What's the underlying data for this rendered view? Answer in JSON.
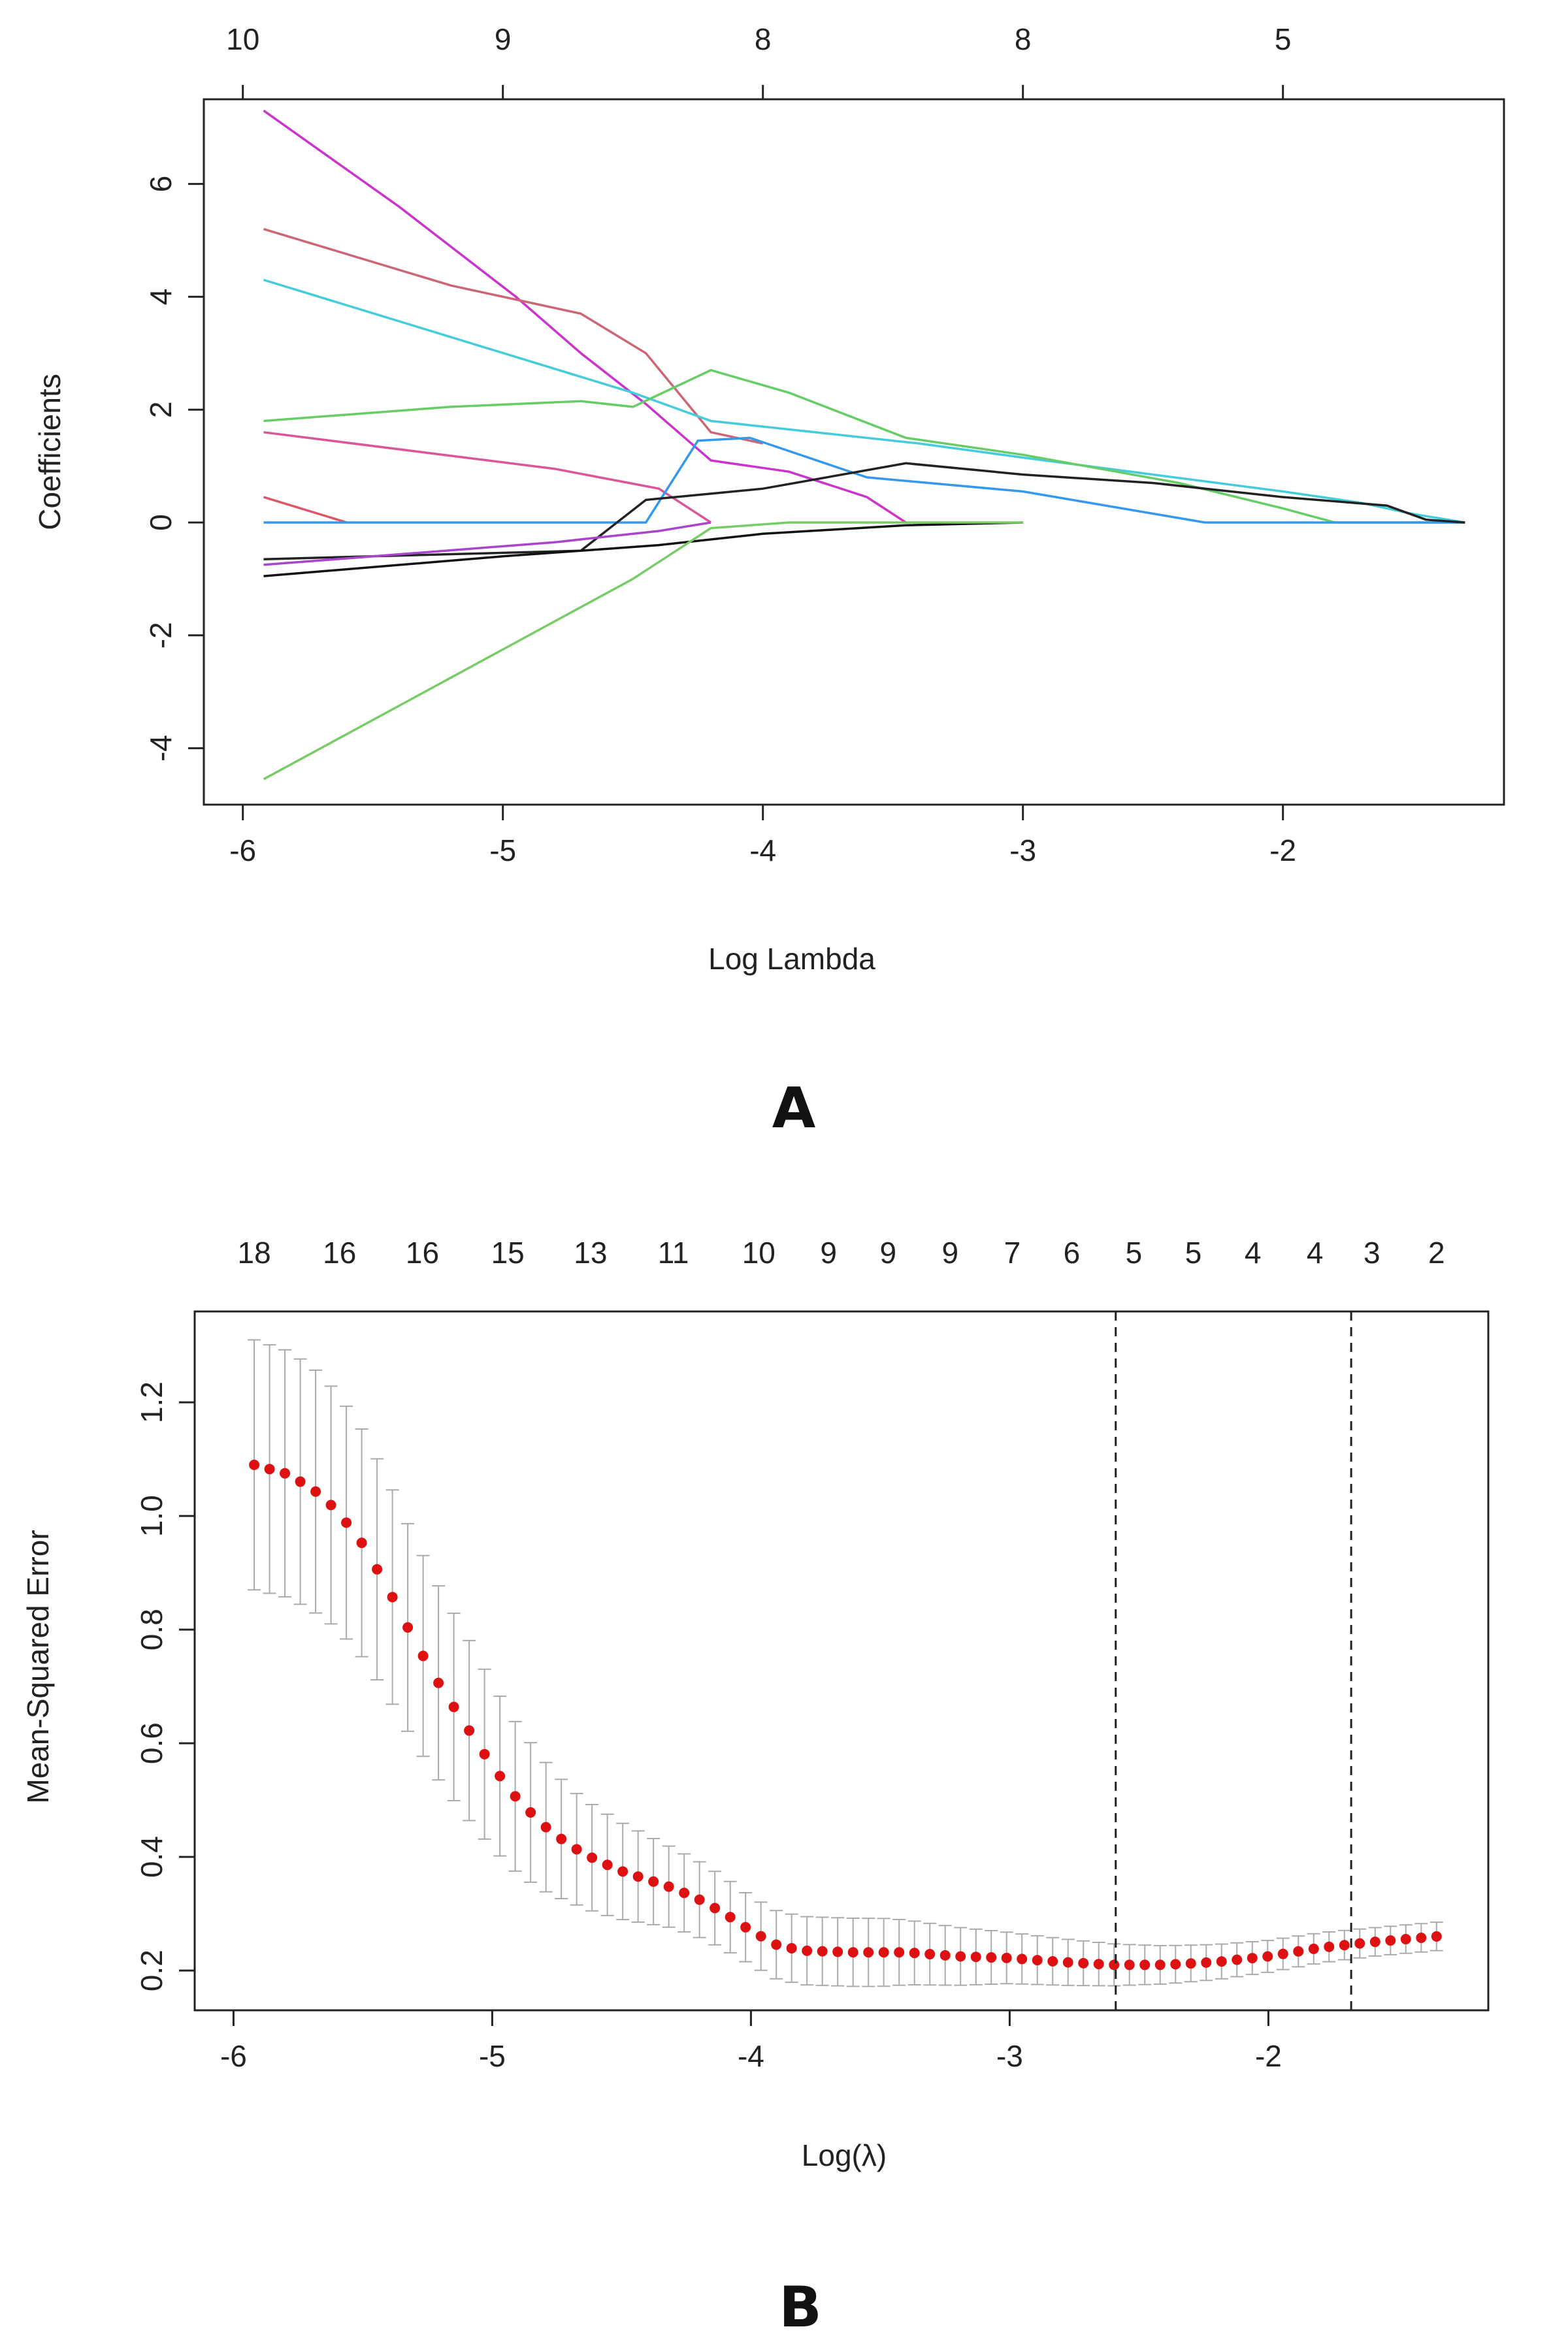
{
  "chart_data": [
    {
      "panel": "A",
      "type": "line",
      "xlabel": "Log Lambda",
      "ylabel": "Coefficients",
      "xlim": [
        -6.15,
        -1.15
      ],
      "ylim": [
        -5.0,
        7.5
      ],
      "xticks": [
        -6,
        -5,
        -4,
        -3,
        -2
      ],
      "xtick_labels": [
        "-6",
        "-5",
        "-4",
        "-3",
        "-2"
      ],
      "yticks": [
        -4,
        -2,
        0,
        2,
        4,
        6
      ],
      "ytick_labels": [
        "-4",
        "-2",
        "0",
        "2",
        "4",
        "6"
      ],
      "top_axis": {
        "positions": [
          -6,
          -5,
          -4,
          -3,
          -2
        ],
        "labels": [
          "10",
          "9",
          "8",
          "8",
          "5"
        ]
      },
      "series": [
        {
          "name": "magenta",
          "color": "#cc33cc",
          "x": [
            -5.92,
            -5.4,
            -4.95,
            -4.7,
            -4.45,
            -4.2,
            -3.9,
            -3.6,
            -3.45
          ],
          "y": [
            7.3,
            5.6,
            4.0,
            3.0,
            2.1,
            1.1,
            0.9,
            0.45,
            0.0
          ]
        },
        {
          "name": "rose",
          "color": "#cc6677",
          "x": [
            -5.92,
            -5.2,
            -4.7,
            -4.45,
            -4.2,
            -4.0
          ],
          "y": [
            5.2,
            4.2,
            3.7,
            3.0,
            1.6,
            1.4
          ]
        },
        {
          "name": "cyan",
          "color": "#44ccdd",
          "x": [
            -5.92,
            -4.5,
            -4.2,
            -3.4,
            -3.0,
            -2.5,
            -2.0,
            -1.7,
            -1.5,
            -1.3
          ],
          "y": [
            4.3,
            2.3,
            1.8,
            1.4,
            1.15,
            0.85,
            0.55,
            0.35,
            0.15,
            0.0
          ]
        },
        {
          "name": "green",
          "color": "#66cc66",
          "x": [
            -5.92,
            -5.2,
            -4.7,
            -4.5,
            -4.2,
            -3.9,
            -3.45,
            -3.0,
            -2.4,
            -2.0,
            -1.8,
            -1.3
          ],
          "y": [
            1.8,
            2.05,
            2.15,
            2.05,
            2.7,
            2.3,
            1.5,
            1.2,
            0.7,
            0.25,
            0.0,
            0.0
          ]
        },
        {
          "name": "pink",
          "color": "#dd5599",
          "x": [
            -5.92,
            -4.8,
            -4.4,
            -4.2
          ],
          "y": [
            1.6,
            0.95,
            0.6,
            0.0
          ]
        },
        {
          "name": "salmon",
          "color": "#dd5566",
          "x": [
            -5.92,
            -5.6
          ],
          "y": [
            0.45,
            0.0
          ]
        },
        {
          "name": "blue",
          "color": "#3399ee",
          "x": [
            -5.92,
            -4.45,
            -4.25,
            -4.05,
            -3.6,
            -3.0,
            -2.3,
            -1.3
          ],
          "y": [
            0.0,
            0.0,
            1.45,
            1.5,
            0.8,
            0.55,
            0.0,
            0.0
          ]
        },
        {
          "name": "black",
          "color": "#222222",
          "x": [
            -5.92,
            -4.7,
            -4.45,
            -4.0,
            -3.45,
            -3.0,
            -2.5,
            -2.0,
            -1.6,
            -1.45,
            -1.3
          ],
          "y": [
            -0.65,
            -0.5,
            0.4,
            0.6,
            1.05,
            0.85,
            0.7,
            0.45,
            0.3,
            0.05,
            0.0
          ]
        },
        {
          "name": "black2",
          "color": "#111111",
          "x": [
            -5.92,
            -5.0,
            -4.4,
            -4.0,
            -3.45,
            -3.0
          ],
          "y": [
            -0.95,
            -0.6,
            -0.4,
            -0.2,
            -0.05,
            0.0
          ]
        },
        {
          "name": "purple",
          "color": "#aa44cc",
          "x": [
            -5.92,
            -4.8,
            -4.4,
            -4.2
          ],
          "y": [
            -0.75,
            -0.35,
            -0.15,
            0.0
          ]
        },
        {
          "name": "green2",
          "color": "#77cc66",
          "x": [
            -5.92,
            -4.7,
            -4.5,
            -4.2,
            -3.9,
            -3.0
          ],
          "y": [
            -4.55,
            -1.5,
            -1.0,
            -0.1,
            0.0,
            0.0
          ]
        }
      ]
    },
    {
      "panel": "B",
      "type": "scatter",
      "xlabel": "Log(λ)",
      "ylabel": "Mean-Squared Error",
      "xlim": [
        -6.15,
        -1.15
      ],
      "ylim": [
        0.13,
        1.36
      ],
      "xticks": [
        -6,
        -5,
        -4,
        -3,
        -2
      ],
      "xtick_labels": [
        "-6",
        "-5",
        "-4",
        "-3",
        "-2"
      ],
      "yticks": [
        0.2,
        0.4,
        0.6,
        0.8,
        1.0,
        1.2
      ],
      "ytick_labels": [
        "0.2",
        "0.4",
        "0.6",
        "0.8",
        "1.0",
        "1.2"
      ],
      "top_axis": {
        "positions": [
          -5.92,
          -5.59,
          -5.27,
          -4.94,
          -4.62,
          -4.3,
          -3.97,
          -3.7,
          -3.47,
          -3.23,
          -2.99,
          -2.76,
          -2.52,
          -2.29,
          -2.06,
          -1.82,
          -1.6,
          -1.35
        ],
        "labels": [
          "18",
          "16",
          "16",
          "15",
          "13",
          "11",
          "10",
          "9",
          "9",
          "9",
          "7",
          "6",
          "5",
          "5",
          "4",
          "4",
          "3",
          "2"
        ]
      },
      "vlines": [
        -2.59,
        -1.68
      ],
      "curve": {
        "x_start": -5.92,
        "x_end": -1.35,
        "n_points": 78,
        "key_x": [
          -5.92,
          -5.8,
          -5.7,
          -5.6,
          -5.5,
          -5.4,
          -5.3,
          -5.2,
          -5.1,
          -5.0,
          -4.9,
          -4.8,
          -4.7,
          -4.6,
          -4.5,
          -4.4,
          -4.3,
          -4.2,
          -4.1,
          -4.0,
          -3.9,
          -3.8,
          -3.6,
          -3.4,
          -3.2,
          -3.0,
          -2.8,
          -2.6,
          -2.4,
          -2.2,
          -2.0,
          -1.8,
          -1.6,
          -1.35
        ],
        "key_y": [
          1.09,
          1.075,
          1.05,
          1.01,
          0.95,
          0.87,
          0.78,
          0.7,
          0.63,
          0.56,
          0.5,
          0.455,
          0.42,
          0.395,
          0.375,
          0.36,
          0.345,
          0.325,
          0.3,
          0.27,
          0.245,
          0.235,
          0.232,
          0.232,
          0.225,
          0.222,
          0.215,
          0.21,
          0.21,
          0.215,
          0.225,
          0.24,
          0.25,
          0.26
        ],
        "err_key_x": [
          -5.92,
          -5.7,
          -5.5,
          -5.3,
          -5.1,
          -4.9,
          -4.7,
          -4.5,
          -4.3,
          -4.0,
          -3.8,
          -3.5,
          -3.0,
          -2.5,
          -2.0,
          -1.6,
          -1.35
        ],
        "err_key_se": [
          0.22,
          0.215,
          0.2,
          0.18,
          0.16,
          0.13,
          0.1,
          0.085,
          0.07,
          0.06,
          0.06,
          0.06,
          0.045,
          0.035,
          0.028,
          0.025,
          0.025
        ],
        "marker_color": "#dd1111",
        "errorbar_color": "#aaaaaa"
      }
    }
  ],
  "panel_labels": {
    "a": "A",
    "b": "B"
  }
}
